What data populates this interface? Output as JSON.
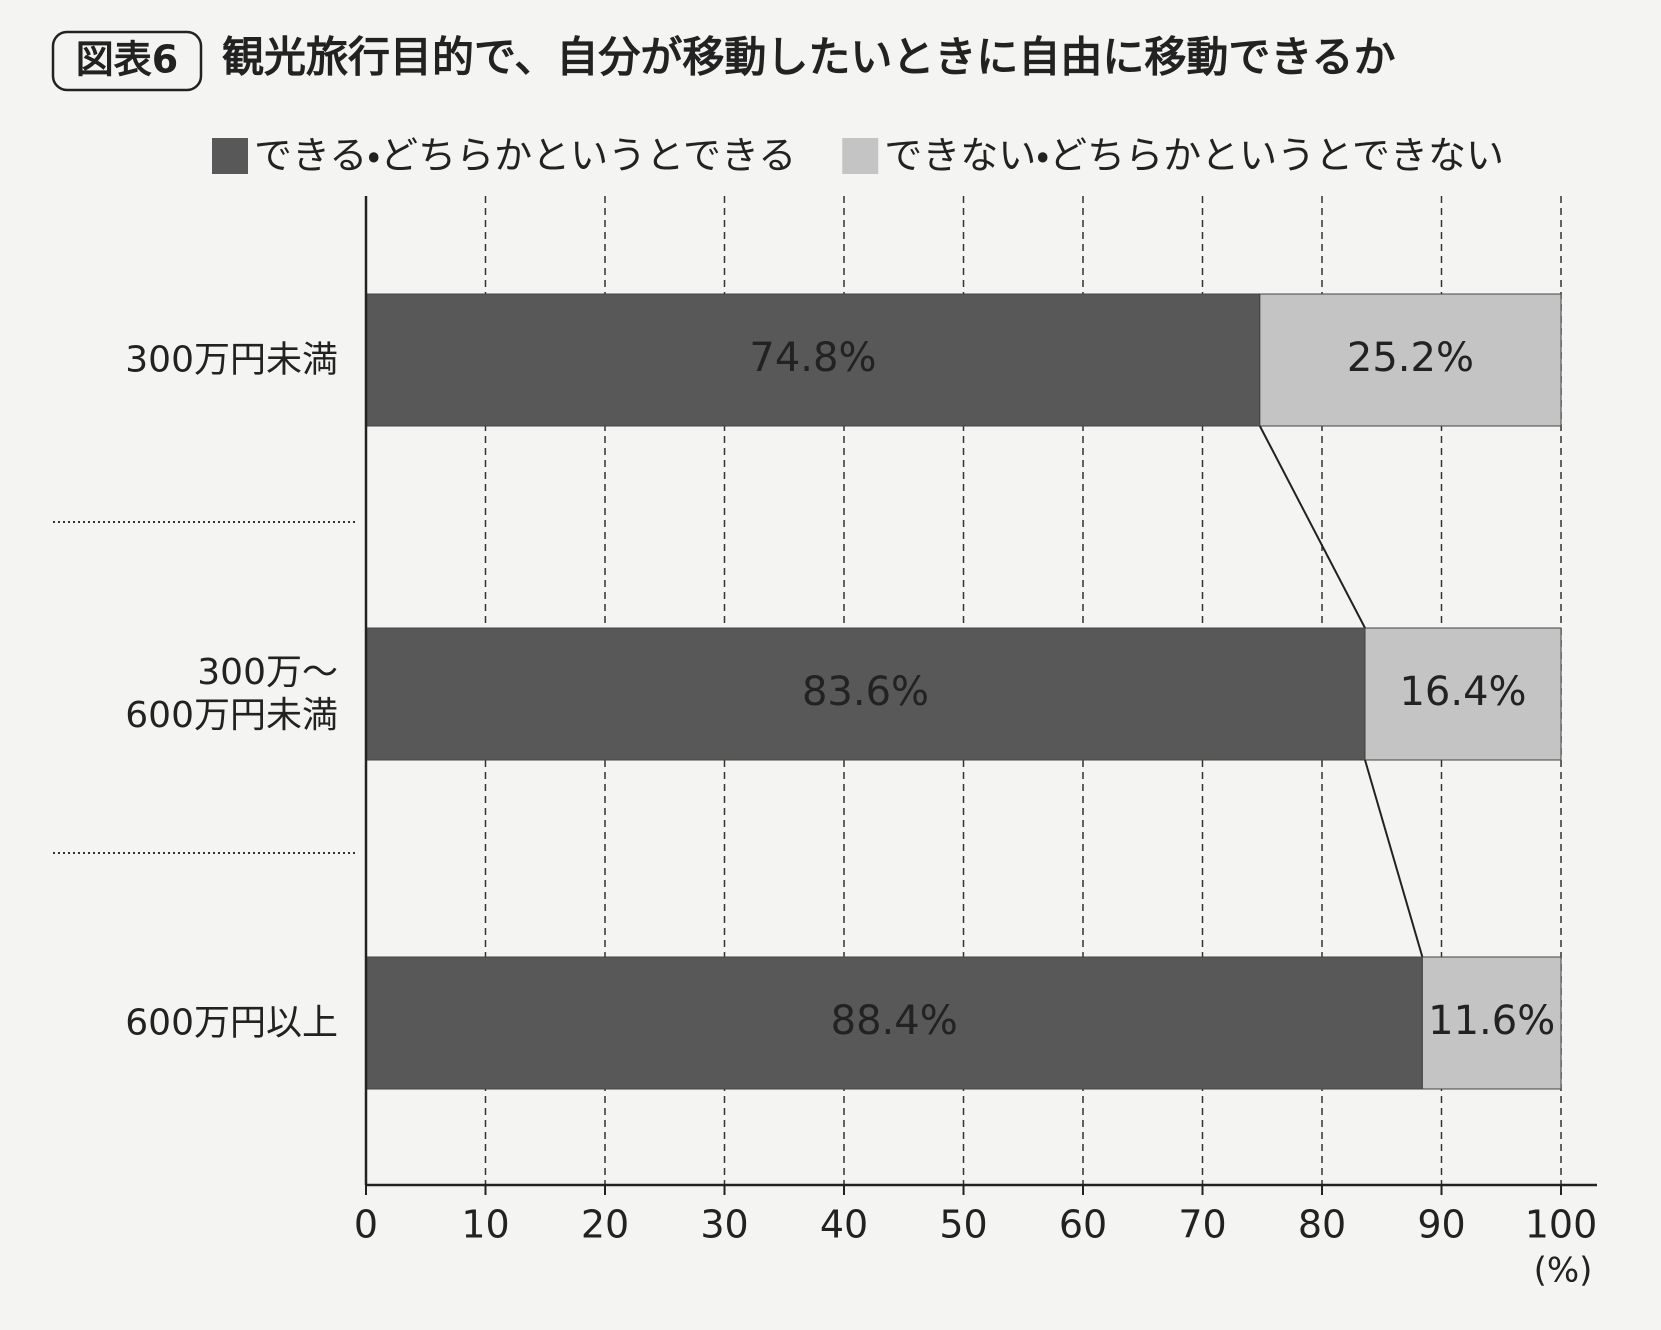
{
  "chart_data": {
    "type": "stacked-barh",
    "badge": "図表6",
    "title": "観光旅行目的で、自分が移動したいときに自由に移動できるか",
    "categories": [
      "300万円未満",
      "300万～\n600万円未満",
      "600万円以上"
    ],
    "series": [
      {
        "name": "できる・どちらかというとできる",
        "color": "#585858",
        "values": [
          74.8,
          83.6,
          88.4
        ],
        "value_labels": [
          "74.8%",
          "83.6%",
          "88.4%"
        ]
      },
      {
        "name": "できない・どちらかというとできない",
        "color": "#c4c4c4",
        "values": [
          25.2,
          16.4,
          11.6
        ],
        "value_labels": [
          "25.2%",
          "16.4%",
          "11.6%"
        ]
      }
    ],
    "xlim": [
      0,
      100
    ],
    "xticks": [
      0,
      10,
      20,
      30,
      40,
      50,
      60,
      70,
      80,
      90,
      100
    ],
    "x_unit": "(%)",
    "grid": true
  }
}
